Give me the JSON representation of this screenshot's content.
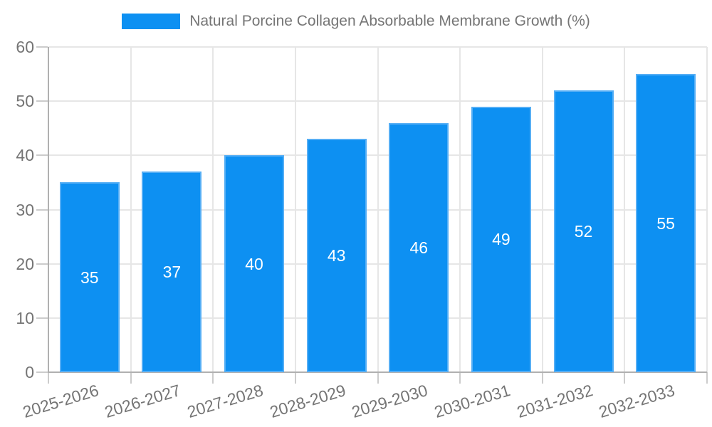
{
  "chart_data": {
    "type": "bar",
    "title": "Natural Porcine Collagen Absorbable Membrane Growth (%)",
    "categories": [
      "2025-2026",
      "2026-2027",
      "2027-2028",
      "2028-2029",
      "2029-2030",
      "2030-2031",
      "2031-2032",
      "2032-2033"
    ],
    "values": [
      35,
      37,
      40,
      43,
      46,
      49,
      52,
      55
    ],
    "xlabel": "",
    "ylabel": "",
    "ylim": [
      0,
      60
    ],
    "ytick_step": 10,
    "yticks": [
      "0",
      "10",
      "20",
      "30",
      "40",
      "50",
      "60"
    ],
    "grid": true,
    "legend_position": "top",
    "value_labels_shown": true,
    "colors": {
      "bar_fill": "#0d90f2",
      "bar_border": "#55aef5",
      "value_label": "#ffffff",
      "axis_text": "#757575",
      "grid_line": "#e6e6e6",
      "axis_line": "#b0b0b0",
      "tick_mark": "#cccccc"
    }
  }
}
